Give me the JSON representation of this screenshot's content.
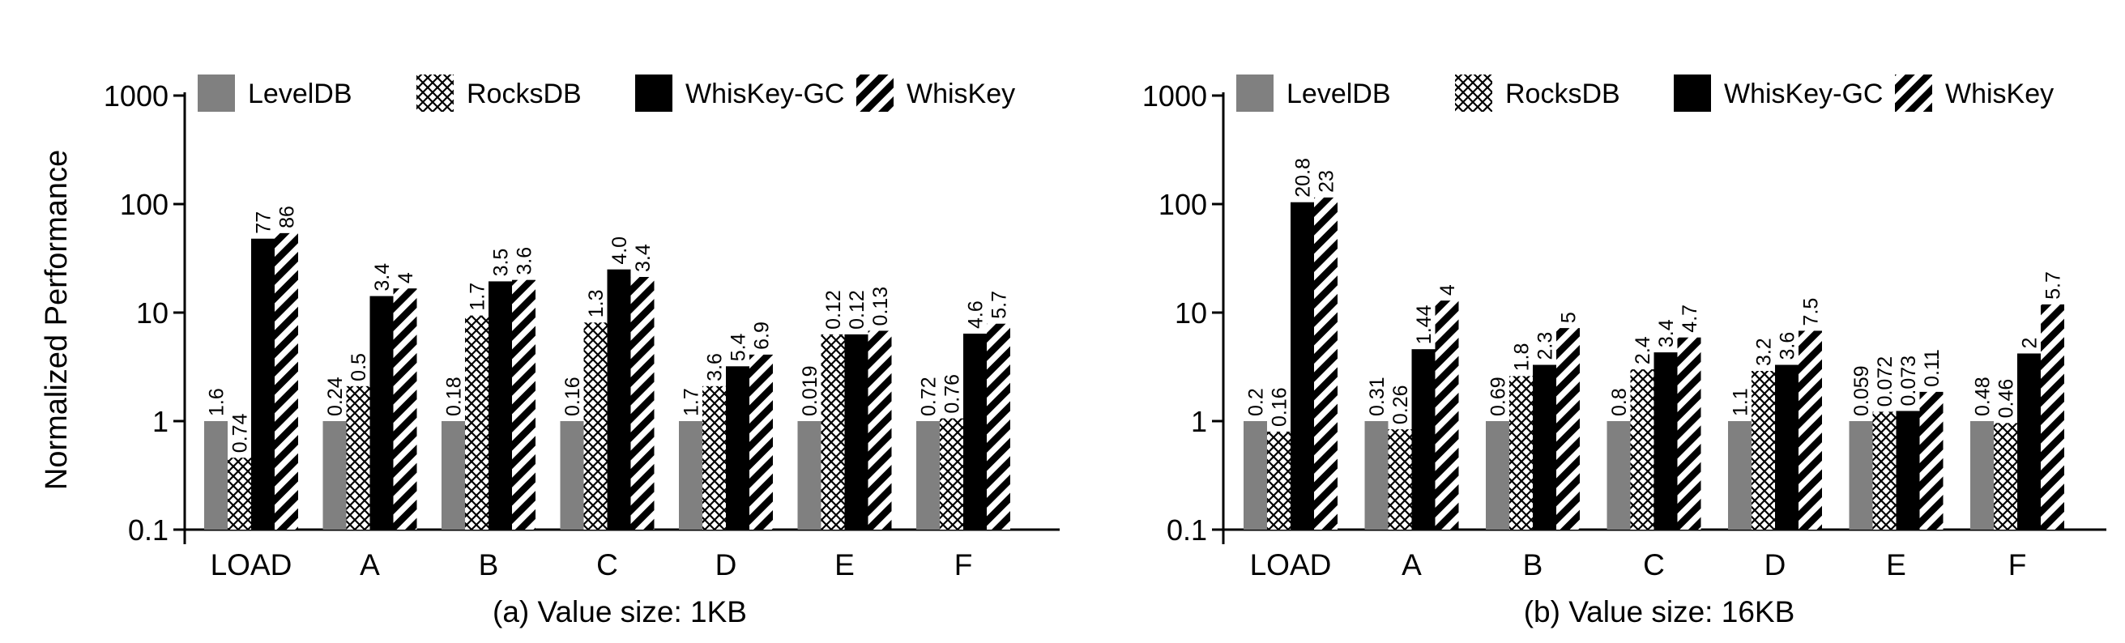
{
  "figure": {
    "ylabel": "Normalized Performance",
    "yticks": [
      "1000",
      "100",
      "10",
      "1",
      "0.1"
    ],
    "legend": [
      "LevelDB",
      "RocksDB",
      "WhisKey-GC",
      "WhisKey"
    ],
    "series_style": {
      "LevelDB": {
        "fill": "#808080",
        "pattern": "solid"
      },
      "RocksDB": {
        "fill": "#ffffff",
        "pattern": "crosshatch"
      },
      "WhisKey-GC": {
        "fill": "#000000",
        "pattern": "solid"
      },
      "WhisKey": {
        "fill": "#ffffff",
        "pattern": "diagonal-stripes"
      }
    }
  },
  "chart_data": [
    {
      "type": "bar",
      "title": "(a) Value size: 1KB",
      "xlabel": "",
      "ylabel": "Normalized Performance",
      "yscale": "log",
      "ylim": [
        0.1,
        1000
      ],
      "grid": false,
      "legend_position": "top",
      "categories": [
        "LOAD",
        "A",
        "B",
        "C",
        "D",
        "E",
        "F"
      ],
      "series": [
        {
          "name": "LevelDB",
          "values": [
            1,
            1,
            1,
            1,
            1,
            1,
            1
          ],
          "labels": [
            "1.6",
            "0.24",
            "0.18",
            "0.16",
            "1.7",
            "0.019",
            "0.72"
          ]
        },
        {
          "name": "RocksDB",
          "values": [
            0.46,
            2.1,
            9.4,
            8.1,
            2.1,
            6.3,
            1.06
          ],
          "labels": [
            "0.74",
            "0.5",
            "1.7",
            "1.3",
            "3.6",
            "0.12",
            "0.76"
          ]
        },
        {
          "name": "WhisKey-GC",
          "values": [
            48,
            14.2,
            19.4,
            25,
            3.2,
            6.3,
            6.4
          ],
          "labels": [
            "77",
            "3.4",
            "3.5",
            "4.0",
            "5.4",
            "0.12",
            "4.6"
          ]
        },
        {
          "name": "WhisKey",
          "values": [
            54,
            16.7,
            20,
            21.3,
            4.1,
            6.8,
            7.9
          ],
          "labels": [
            "86",
            "4",
            "3.6",
            "3.4",
            "6.9",
            "0.13",
            "5.7"
          ]
        }
      ]
    },
    {
      "type": "bar",
      "title": "(b) Value size: 16KB",
      "xlabel": "",
      "ylabel": "",
      "yscale": "log",
      "ylim": [
        0.1,
        1000
      ],
      "grid": false,
      "legend_position": "top",
      "categories": [
        "LOAD",
        "A",
        "B",
        "C",
        "D",
        "E",
        "F"
      ],
      "series": [
        {
          "name": "LevelDB",
          "values": [
            1,
            1,
            1,
            1,
            1,
            1,
            1
          ],
          "labels": [
            "0.2",
            "0.31",
            "0.69",
            "0.8",
            "1.1",
            "0.059",
            "0.48"
          ]
        },
        {
          "name": "RocksDB",
          "values": [
            0.8,
            0.84,
            2.6,
            3.0,
            2.9,
            1.22,
            0.96
          ],
          "labels": [
            "0.16",
            "0.26",
            "1.8",
            "2.4",
            "3.2",
            "0.072",
            "0.46"
          ]
        },
        {
          "name": "WhisKey-GC",
          "values": [
            104,
            4.6,
            3.3,
            4.3,
            3.3,
            1.24,
            4.2
          ],
          "labels": [
            "20.8",
            "1.44",
            "2.3",
            "3.4",
            "3.6",
            "0.073",
            "2"
          ]
        },
        {
          "name": "WhisKey",
          "values": [
            115,
            12.9,
            7.2,
            5.9,
            6.8,
            1.86,
            11.9
          ],
          "labels": [
            "23",
            "4",
            "5",
            "4.7",
            "7.5",
            "0.11",
            "5.7"
          ]
        }
      ]
    }
  ]
}
